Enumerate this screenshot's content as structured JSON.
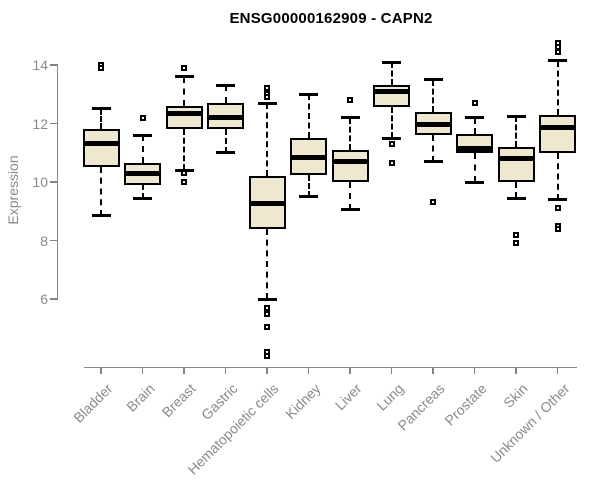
{
  "chart_data": {
    "type": "boxplot",
    "title": "ENSG00000162909 - CAPN2",
    "ylabel": "Expression",
    "xlabel": "",
    "y_axis": {
      "min": 6,
      "max": 14,
      "ticks": [
        14,
        12,
        10,
        8,
        6
      ]
    },
    "grid": "off",
    "legend": "none",
    "categories": [
      "Bladder",
      "Brain",
      "Breast",
      "Gastric",
      "Hematopoietic cells",
      "Kidney",
      "Liver",
      "Lung",
      "Pancreas",
      "Prostate",
      "Skin",
      "Unknown / Other"
    ],
    "boxes": [
      {
        "category": "Bladder",
        "whisker_low": 8.85,
        "q1": 10.5,
        "median": 11.3,
        "q3": 11.8,
        "whisker_high": 12.5,
        "outliers": [
          14.0,
          13.9
        ]
      },
      {
        "category": "Brain",
        "whisker_low": 9.45,
        "q1": 9.9,
        "median": 10.3,
        "q3": 10.65,
        "whisker_high": 11.6,
        "outliers": [
          12.2
        ]
      },
      {
        "category": "Breast",
        "whisker_low": 10.4,
        "q1": 11.8,
        "median": 12.35,
        "q3": 12.6,
        "whisker_high": 13.6,
        "outliers": [
          13.9,
          10.3,
          10.0
        ]
      },
      {
        "category": "Gastric",
        "whisker_low": 11.0,
        "q1": 11.8,
        "median": 12.2,
        "q3": 12.7,
        "whisker_high": 13.3,
        "outliers": []
      },
      {
        "category": "Hematopoietic cells",
        "whisker_low": 6.0,
        "q1": 8.4,
        "median": 9.25,
        "q3": 10.2,
        "whisker_high": 12.7,
        "outliers": [
          13.2,
          13.0,
          12.9,
          5.7,
          5.5,
          5.05,
          4.2,
          4.05
        ]
      },
      {
        "category": "Kidney",
        "whisker_low": 9.5,
        "q1": 10.25,
        "median": 10.85,
        "q3": 11.5,
        "whisker_high": 13.0,
        "outliers": []
      },
      {
        "category": "Liver",
        "whisker_low": 9.05,
        "q1": 10.0,
        "median": 10.7,
        "q3": 11.1,
        "whisker_high": 12.2,
        "outliers": [
          12.8
        ]
      },
      {
        "category": "Lung",
        "whisker_low": 11.5,
        "q1": 12.55,
        "median": 13.1,
        "q3": 13.3,
        "whisker_high": 14.1,
        "outliers": [
          11.3,
          10.65
        ]
      },
      {
        "category": "Pancreas",
        "whisker_low": 10.7,
        "q1": 11.6,
        "median": 11.95,
        "q3": 12.4,
        "whisker_high": 13.5,
        "outliers": [
          9.3
        ]
      },
      {
        "category": "Prostate",
        "whisker_low": 10.0,
        "q1": 11.0,
        "median": 11.15,
        "q3": 11.65,
        "whisker_high": 12.2,
        "outliers": [
          12.7
        ]
      },
      {
        "category": "Skin",
        "whisker_low": 9.45,
        "q1": 10.0,
        "median": 10.8,
        "q3": 11.2,
        "whisker_high": 12.25,
        "outliers": [
          8.2,
          7.9
        ]
      },
      {
        "category": "Unknown / Other",
        "whisker_low": 9.4,
        "q1": 11.0,
        "median": 11.85,
        "q3": 12.3,
        "whisker_high": 14.15,
        "outliers": [
          14.75,
          14.6,
          14.45,
          9.1,
          8.5,
          8.4
        ]
      }
    ],
    "colors": {
      "box_fill": "#EDE8CE",
      "box_border": "#000000",
      "median": "#000000",
      "whisker": "#000000",
      "axis": "#858585",
      "tick_text": "#8a8a8a",
      "title_text": "#000000",
      "background": "#ffffff"
    }
  }
}
